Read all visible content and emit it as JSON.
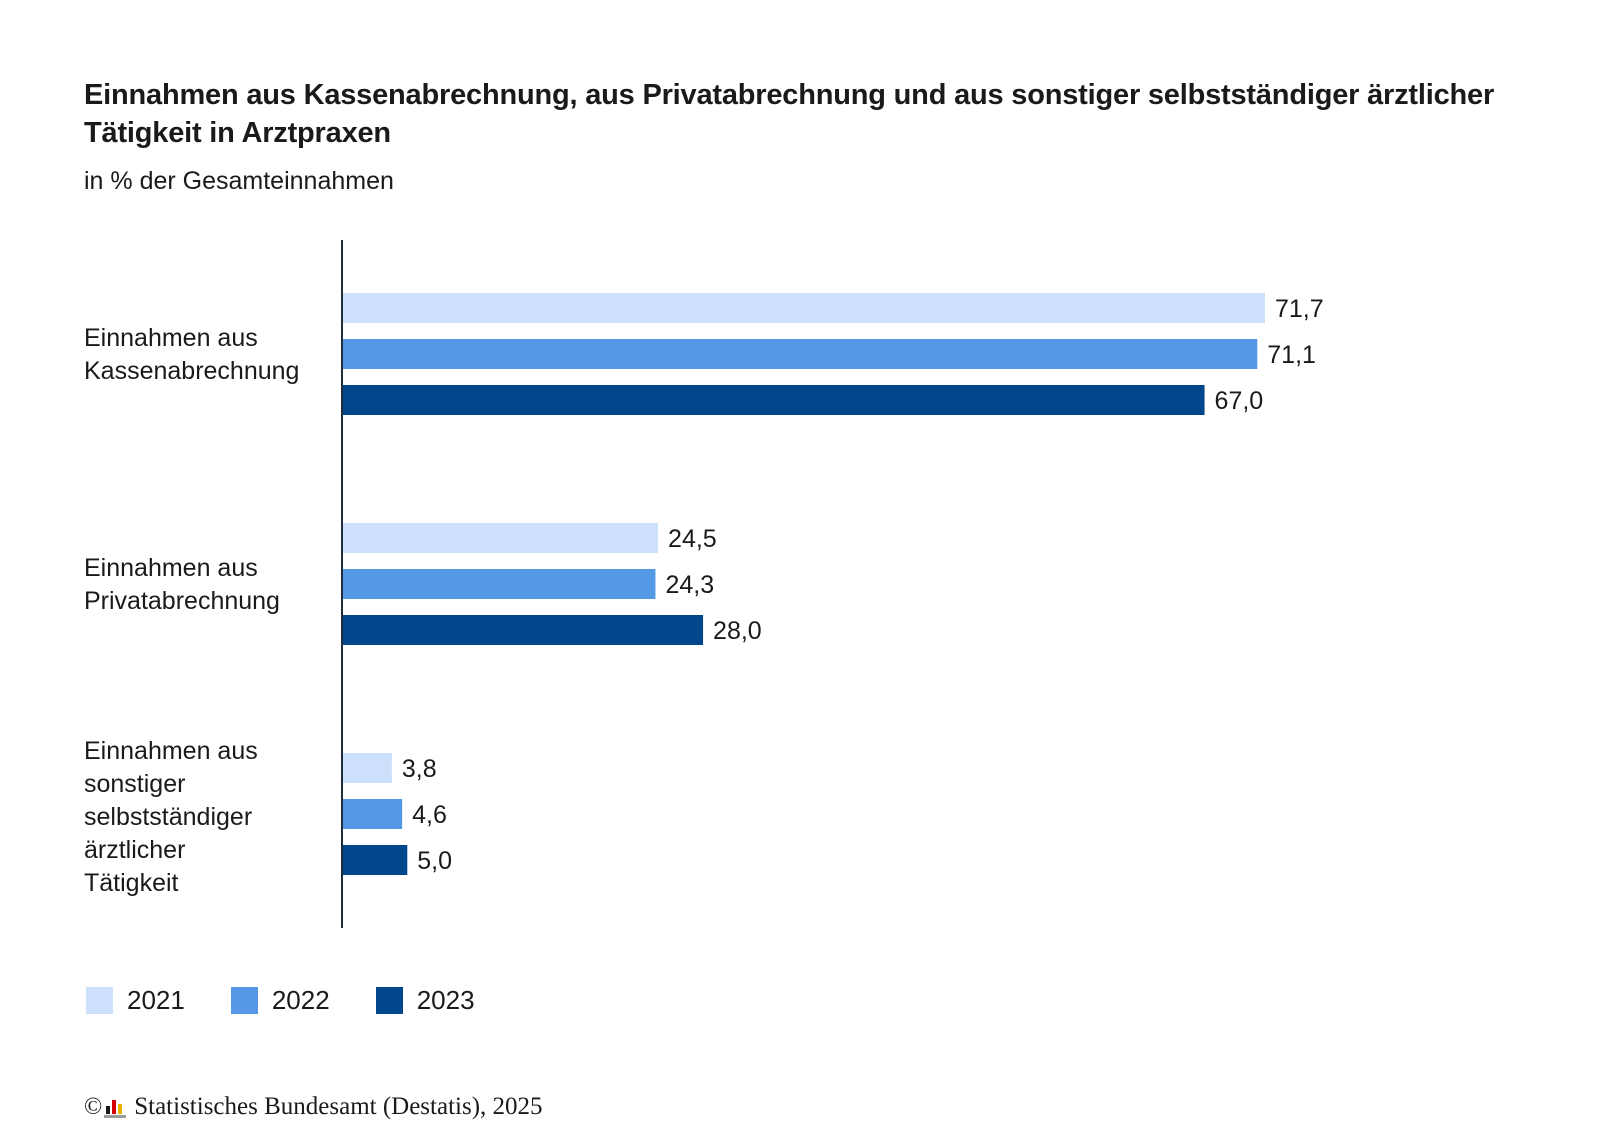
{
  "chart_data": {
    "type": "bar",
    "orientation": "horizontal",
    "title": "Einnahmen aus Kassenabrechnung, aus Privatabrechnung und aus sonstiger selbstständiger ärztlicher Tätigkeit in Arztpraxen",
    "subtitle": "in % der Gesamteinnahmen",
    "categories": [
      [
        "Einnahmen aus",
        "Kassenabrechnung"
      ],
      [
        "Einnahmen aus",
        "Privatabrechnung"
      ],
      [
        "Einnahmen aus",
        "sonstiger",
        "selbstständiger",
        "ärztlicher",
        "Tätigkeit"
      ]
    ],
    "series": [
      {
        "name": "2021",
        "color": "#cce0fb",
        "values": [
          71.7,
          24.5,
          3.8
        ],
        "labels": [
          "71,7",
          "24,5",
          "3,8"
        ]
      },
      {
        "name": "2022",
        "color": "#5599e6",
        "values": [
          71.1,
          24.3,
          4.6
        ],
        "labels": [
          "71,1",
          "24,3",
          "4,6"
        ]
      },
      {
        "name": "2023",
        "color": "#00468c",
        "values": [
          67.0,
          28.0,
          5.0
        ],
        "labels": [
          "67,0",
          "28,0",
          "5,0"
        ]
      }
    ],
    "xlim": [
      0,
      75
    ],
    "grid": false,
    "legend_position": "bottom-left",
    "axis_color": "#1f2d3d"
  },
  "source": {
    "copyright": "©",
    "text": "Statistisches Bundesamt (Destatis), 2025"
  }
}
